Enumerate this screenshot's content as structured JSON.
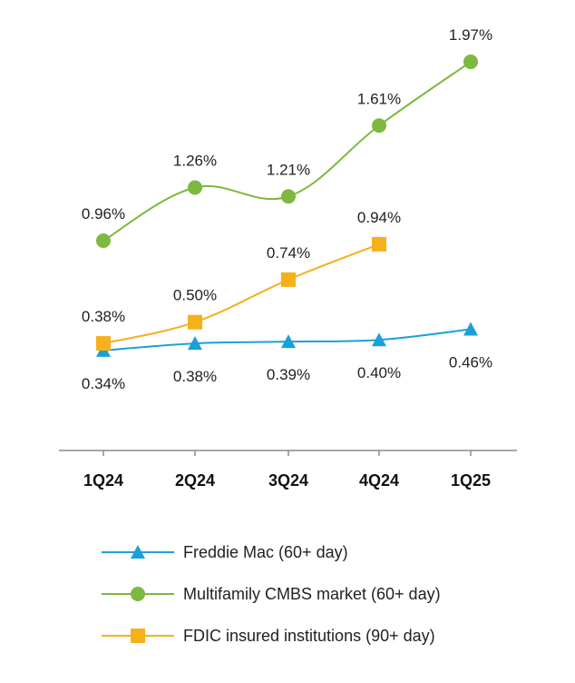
{
  "chart_data": {
    "type": "line",
    "categories": [
      "1Q24",
      "2Q24",
      "3Q24",
      "4Q24",
      "1Q25"
    ],
    "ylim": [
      0,
      2.2
    ],
    "grid": false,
    "legend_position": "bottom",
    "series": [
      {
        "name": "Freddie Mac (60+ day)",
        "color": "#1aa0d8",
        "marker": "triangle",
        "values": [
          0.34,
          0.38,
          0.39,
          0.4,
          0.46
        ],
        "labels": [
          "0.34%",
          "0.38%",
          "0.39%",
          "0.40%",
          "0.46%"
        ]
      },
      {
        "name": "Multifamily CMBS market (60+ day)",
        "color": "#7db83f",
        "marker": "circle",
        "values": [
          0.96,
          1.26,
          1.21,
          1.61,
          1.97
        ],
        "labels": [
          "0.96%",
          "1.26%",
          "1.21%",
          "1.61%",
          "1.97%"
        ]
      },
      {
        "name": "FDIC insured institutions (90+ day)",
        "color": "#f5b01b",
        "marker": "square",
        "values": [
          0.38,
          0.5,
          0.74,
          0.94,
          null
        ],
        "labels": [
          "0.38%",
          "0.50%",
          "0.74%",
          "0.94%",
          null
        ]
      }
    ]
  }
}
